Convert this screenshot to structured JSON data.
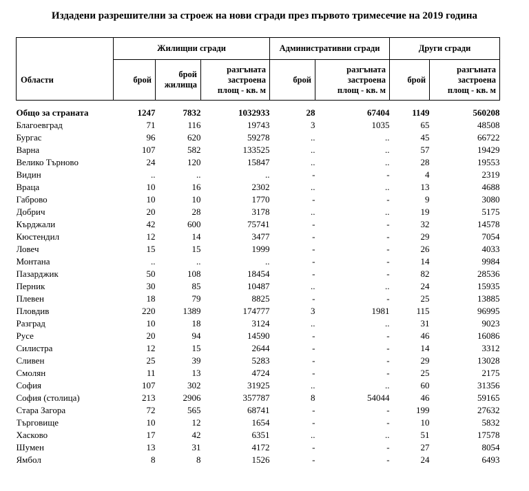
{
  "title": "Издадени разрешителни за строеж на нови сгради през първото тримесечие на 2019 година",
  "table": {
    "corner_header": "Области",
    "groups": [
      {
        "label": "Жилищни сгради",
        "cols": [
          "брой",
          "брой\nжилища",
          "разгъната\nзастроена\nплощ - кв. м"
        ]
      },
      {
        "label": "Административни сгради",
        "cols": [
          "брой",
          "разгъната\nзастроена\nплощ - кв. м"
        ]
      },
      {
        "label": "Други сгради",
        "cols": [
          "брой",
          "разгъната\nзастроена\nплощ - кв. м"
        ]
      }
    ],
    "rows": [
      {
        "region": "Общо за страната",
        "bold": true,
        "values": [
          "1247",
          "7832",
          "1032933",
          "28",
          "67404",
          "1149",
          "560208"
        ]
      },
      {
        "region": "Благоевград",
        "bold": false,
        "values": [
          "71",
          "116",
          "19743",
          "3",
          "1035",
          "65",
          "48508"
        ]
      },
      {
        "region": "Бургас",
        "bold": false,
        "values": [
          "96",
          "620",
          "59278",
          "..",
          "..",
          "45",
          "66722"
        ]
      },
      {
        "region": "Варна",
        "bold": false,
        "values": [
          "107",
          "582",
          "133525",
          "..",
          "..",
          "57",
          "19429"
        ]
      },
      {
        "region": "Велико Търново",
        "bold": false,
        "values": [
          "24",
          "120",
          "15847",
          "..",
          "..",
          "28",
          "19553"
        ]
      },
      {
        "region": "Видин",
        "bold": false,
        "values": [
          "..",
          "..",
          "..",
          "-",
          "-",
          "4",
          "2319"
        ]
      },
      {
        "region": "Враца",
        "bold": false,
        "values": [
          "10",
          "16",
          "2302",
          "..",
          "..",
          "13",
          "4688"
        ]
      },
      {
        "region": "Габрово",
        "bold": false,
        "values": [
          "10",
          "10",
          "1770",
          "-",
          "-",
          "9",
          "3080"
        ]
      },
      {
        "region": "Добрич",
        "bold": false,
        "values": [
          "20",
          "28",
          "3178",
          "..",
          "..",
          "19",
          "5175"
        ]
      },
      {
        "region": "Кърджали",
        "bold": false,
        "values": [
          "42",
          "600",
          "75741",
          "-",
          "-",
          "32",
          "14578"
        ]
      },
      {
        "region": "Кюстендил",
        "bold": false,
        "values": [
          "12",
          "14",
          "3477",
          "-",
          "-",
          "29",
          "7054"
        ]
      },
      {
        "region": "Ловеч",
        "bold": false,
        "values": [
          "15",
          "15",
          "1999",
          "-",
          "-",
          "26",
          "4033"
        ]
      },
      {
        "region": "Монтана",
        "bold": false,
        "values": [
          "..",
          "..",
          "..",
          "-",
          "-",
          "14",
          "9984"
        ]
      },
      {
        "region": "Пазарджик",
        "bold": false,
        "values": [
          "50",
          "108",
          "18454",
          "-",
          "-",
          "82",
          "28536"
        ]
      },
      {
        "region": "Перник",
        "bold": false,
        "values": [
          "30",
          "85",
          "10487",
          "..",
          "..",
          "24",
          "15935"
        ]
      },
      {
        "region": "Плевен",
        "bold": false,
        "values": [
          "18",
          "79",
          "8825",
          "-",
          "-",
          "25",
          "13885"
        ]
      },
      {
        "region": "Пловдив",
        "bold": false,
        "values": [
          "220",
          "1389",
          "174777",
          "3",
          "1981",
          "115",
          "96995"
        ]
      },
      {
        "region": "Разград",
        "bold": false,
        "values": [
          "10",
          "18",
          "3124",
          "..",
          "..",
          "31",
          "9023"
        ]
      },
      {
        "region": "Русе",
        "bold": false,
        "values": [
          "20",
          "94",
          "14590",
          "-",
          "-",
          "46",
          "16086"
        ]
      },
      {
        "region": "Силистра",
        "bold": false,
        "values": [
          "12",
          "15",
          "2644",
          "-",
          "-",
          "14",
          "3312"
        ]
      },
      {
        "region": "Сливен",
        "bold": false,
        "values": [
          "25",
          "39",
          "5283",
          "-",
          "-",
          "29",
          "13028"
        ]
      },
      {
        "region": "Смолян",
        "bold": false,
        "values": [
          "11",
          "13",
          "4724",
          "-",
          "-",
          "25",
          "2175"
        ]
      },
      {
        "region": "София",
        "bold": false,
        "values": [
          "107",
          "302",
          "31925",
          "..",
          "..",
          "60",
          "31356"
        ]
      },
      {
        "region": "София (столица)",
        "bold": false,
        "values": [
          "213",
          "2906",
          "357787",
          "8",
          "54044",
          "46",
          "59165"
        ]
      },
      {
        "region": "Стара Загора",
        "bold": false,
        "values": [
          "72",
          "565",
          "68741",
          "-",
          "-",
          "199",
          "27632"
        ]
      },
      {
        "region": "Търговище",
        "bold": false,
        "values": [
          "10",
          "12",
          "1654",
          "-",
          "-",
          "10",
          "5832"
        ]
      },
      {
        "region": "Хасково",
        "bold": false,
        "values": [
          "17",
          "42",
          "6351",
          "..",
          "..",
          "51",
          "17578"
        ]
      },
      {
        "region": "Шумен",
        "bold": false,
        "values": [
          "13",
          "31",
          "4172",
          "-",
          "-",
          "27",
          "8054"
        ]
      },
      {
        "region": "Ямбол",
        "bold": false,
        "values": [
          "8",
          "8",
          "1526",
          "-",
          "-",
          "24",
          "6493"
        ]
      }
    ]
  }
}
